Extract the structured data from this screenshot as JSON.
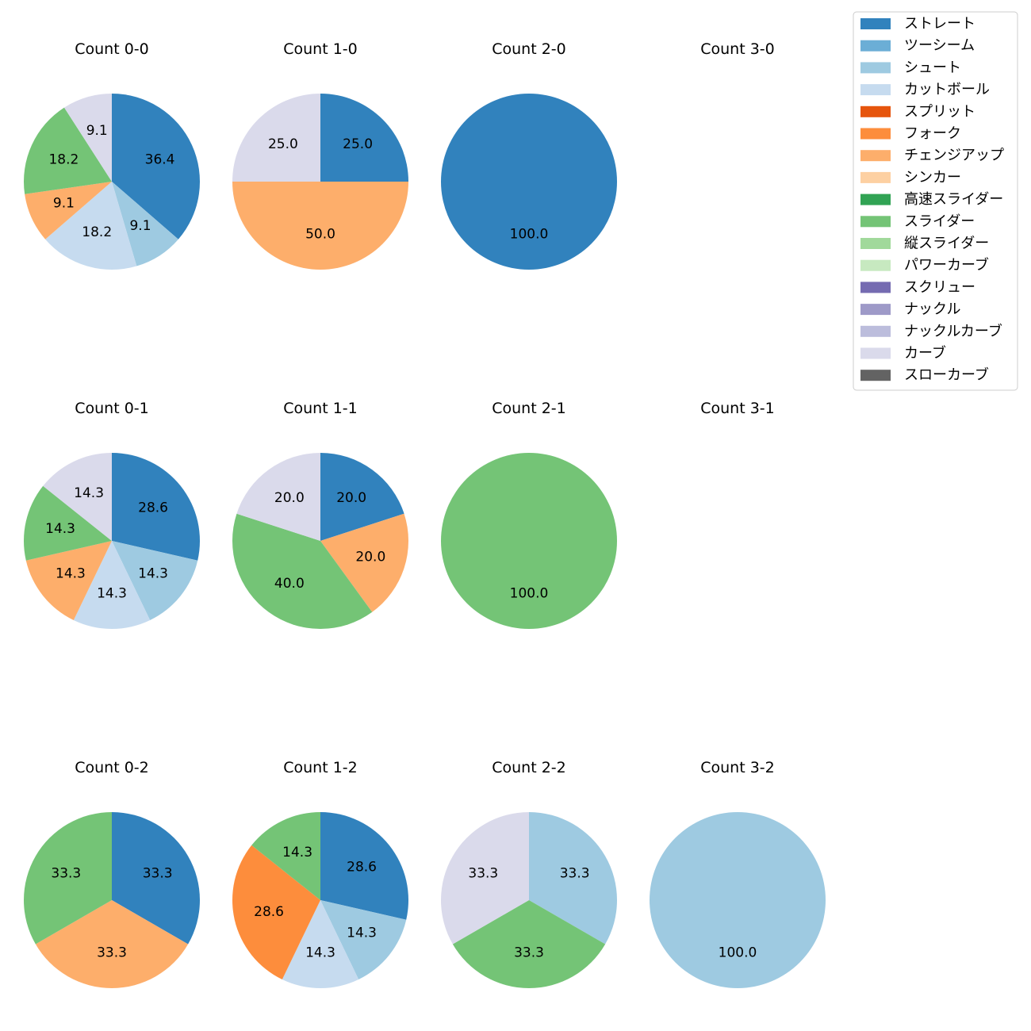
{
  "chart_data": {
    "type": "pie",
    "layout": "small-multiples 3 rows x 4 columns",
    "legend": {
      "placement": "top-right",
      "entries": [
        {
          "label": "ストレート",
          "color": "#3182bd"
        },
        {
          "label": "ツーシーム",
          "color": "#6baed6"
        },
        {
          "label": "シュート",
          "color": "#9ecae1"
        },
        {
          "label": "カットボール",
          "color": "#c6dbef"
        },
        {
          "label": "スプリット",
          "color": "#e6550d"
        },
        {
          "label": "フォーク",
          "color": "#fd8d3c"
        },
        {
          "label": "チェンジアップ",
          "color": "#fdae6b"
        },
        {
          "label": "シンカー",
          "color": "#fdd0a2"
        },
        {
          "label": "高速スライダー",
          "color": "#31a354"
        },
        {
          "label": "スライダー",
          "color": "#74c476"
        },
        {
          "label": "縦スライダー",
          "color": "#a1d99b"
        },
        {
          "label": "パワーカーブ",
          "color": "#c7e9c0"
        },
        {
          "label": "スクリュー",
          "color": "#756bb1"
        },
        {
          "label": "ナックル",
          "color": "#9e9ac8"
        },
        {
          "label": "ナックルカーブ",
          "color": "#bcbddc"
        },
        {
          "label": "カーブ",
          "color": "#dadaeb"
        },
        {
          "label": "スローカーブ",
          "color": "#636363"
        }
      ]
    },
    "panels": [
      {
        "title": "Count 0-0",
        "row": 0,
        "col": 0,
        "slices": [
          {
            "pitch": "ストレート",
            "value": 36.4,
            "label": "36.4"
          },
          {
            "pitch": "シュート",
            "value": 9.1,
            "label": "9.1"
          },
          {
            "pitch": "カットボール",
            "value": 18.2,
            "label": "18.2"
          },
          {
            "pitch": "チェンジアップ",
            "value": 9.1,
            "label": "9.1"
          },
          {
            "pitch": "スライダー",
            "value": 18.2,
            "label": "18.2"
          },
          {
            "pitch": "カーブ",
            "value": 9.1,
            "label": "9.1"
          }
        ]
      },
      {
        "title": "Count 1-0",
        "row": 0,
        "col": 1,
        "slices": [
          {
            "pitch": "ストレート",
            "value": 25.0,
            "label": "25.0"
          },
          {
            "pitch": "チェンジアップ",
            "value": 50.0,
            "label": "50.0"
          },
          {
            "pitch": "カーブ",
            "value": 25.0,
            "label": "25.0"
          }
        ]
      },
      {
        "title": "Count 2-0",
        "row": 0,
        "col": 2,
        "slices": [
          {
            "pitch": "ストレート",
            "value": 100.0,
            "label": "100.0"
          }
        ]
      },
      {
        "title": "Count 3-0",
        "row": 0,
        "col": 3,
        "slices": []
      },
      {
        "title": "Count 0-1",
        "row": 1,
        "col": 0,
        "slices": [
          {
            "pitch": "ストレート",
            "value": 28.6,
            "label": "28.6"
          },
          {
            "pitch": "シュート",
            "value": 14.3,
            "label": "14.3"
          },
          {
            "pitch": "カットボール",
            "value": 14.3,
            "label": "14.3"
          },
          {
            "pitch": "チェンジアップ",
            "value": 14.3,
            "label": "14.3"
          },
          {
            "pitch": "スライダー",
            "value": 14.3,
            "label": "14.3"
          },
          {
            "pitch": "カーブ",
            "value": 14.3,
            "label": "14.3"
          }
        ]
      },
      {
        "title": "Count 1-1",
        "row": 1,
        "col": 1,
        "slices": [
          {
            "pitch": "ストレート",
            "value": 20.0,
            "label": "20.0"
          },
          {
            "pitch": "チェンジアップ",
            "value": 20.0,
            "label": "20.0"
          },
          {
            "pitch": "スライダー",
            "value": 40.0,
            "label": "40.0"
          },
          {
            "pitch": "カーブ",
            "value": 20.0,
            "label": "20.0"
          }
        ]
      },
      {
        "title": "Count 2-1",
        "row": 1,
        "col": 2,
        "slices": [
          {
            "pitch": "スライダー",
            "value": 100.0,
            "label": "100.0"
          }
        ]
      },
      {
        "title": "Count 3-1",
        "row": 1,
        "col": 3,
        "slices": []
      },
      {
        "title": "Count 0-2",
        "row": 2,
        "col": 0,
        "slices": [
          {
            "pitch": "ストレート",
            "value": 33.3,
            "label": "33.3"
          },
          {
            "pitch": "チェンジアップ",
            "value": 33.3,
            "label": "33.3"
          },
          {
            "pitch": "スライダー",
            "value": 33.3,
            "label": "33.3"
          }
        ]
      },
      {
        "title": "Count 1-2",
        "row": 2,
        "col": 1,
        "slices": [
          {
            "pitch": "ストレート",
            "value": 28.6,
            "label": "28.6"
          },
          {
            "pitch": "シュート",
            "value": 14.3,
            "label": "14.3"
          },
          {
            "pitch": "カットボール",
            "value": 14.3,
            "label": "14.3"
          },
          {
            "pitch": "フォーク",
            "value": 28.6,
            "label": "28.6"
          },
          {
            "pitch": "スライダー",
            "value": 14.3,
            "label": "14.3"
          }
        ]
      },
      {
        "title": "Count 2-2",
        "row": 2,
        "col": 2,
        "slices": [
          {
            "pitch": "シュート",
            "value": 33.3,
            "label": "33.3"
          },
          {
            "pitch": "スライダー",
            "value": 33.3,
            "label": "33.3"
          },
          {
            "pitch": "カーブ",
            "value": 33.3,
            "label": "33.3"
          }
        ]
      },
      {
        "title": "Count 3-2",
        "row": 2,
        "col": 3,
        "slices": [
          {
            "pitch": "シュート",
            "value": 100.0,
            "label": "100.0"
          }
        ]
      }
    ]
  }
}
